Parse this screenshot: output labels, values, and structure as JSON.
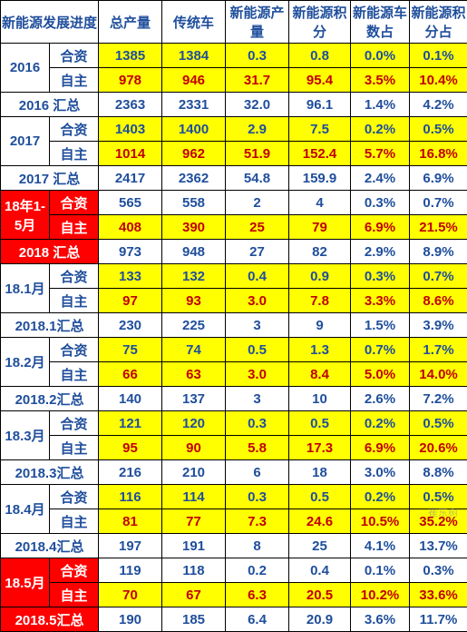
{
  "header": [
    "新能源发展进度",
    "总产量",
    "传统车",
    "新能源产量",
    "新能源积分",
    "新能源车数占",
    "新能源积分占"
  ],
  "widths": [
    54,
    54,
    70,
    70,
    70,
    68,
    65,
    64
  ],
  "rows": [
    {
      "group": "2016",
      "gstyle": "lbl",
      "sub": "合资",
      "substyle": "lbl",
      "cells": [
        "1385",
        "1384",
        "0.3",
        "0.8",
        "0.0%",
        "0.1%"
      ],
      "rowstyle": "yellow",
      "txt": "blue-txt"
    },
    {
      "group": "",
      "sub": "自主",
      "substyle": "lbl",
      "cells": [
        "978",
        "946",
        "31.7",
        "95.4",
        "3.5%",
        "10.4%"
      ],
      "rowstyle": "yellow",
      "txt": "red-txt"
    },
    {
      "span": "2016 汇总",
      "spanstyle": "lbl",
      "cells": [
        "2363",
        "2331",
        "32.0",
        "96.1",
        "1.4%",
        "4.2%"
      ],
      "rowstyle": "",
      "txt": "blue-txt"
    },
    {
      "group": "2017",
      "gstyle": "lbl",
      "sub": "合资",
      "substyle": "lbl",
      "cells": [
        "1403",
        "1400",
        "2.9",
        "7.5",
        "0.2%",
        "0.5%"
      ],
      "rowstyle": "yellow",
      "txt": "blue-txt"
    },
    {
      "group": "",
      "sub": "自主",
      "substyle": "lbl",
      "cells": [
        "1014",
        "962",
        "51.9",
        "152.4",
        "5.7%",
        "16.8%"
      ],
      "rowstyle": "yellow",
      "txt": "red-txt"
    },
    {
      "span": "2017 汇总",
      "spanstyle": "lbl",
      "cells": [
        "2417",
        "2362",
        "54.8",
        "159.9",
        "2.4%",
        "6.9%"
      ],
      "rowstyle": "",
      "txt": "blue-txt"
    },
    {
      "group": "18年1-5月",
      "gstyle": "red-bg",
      "sub": "合资",
      "substyle": "red-bg",
      "cells": [
        "565",
        "558",
        "2",
        "4",
        "0.3%",
        "0.7%"
      ],
      "rowstyle": "",
      "txt": "blue-txt"
    },
    {
      "group": "",
      "sub": "自主",
      "substyle": "red-bg",
      "cells": [
        "408",
        "390",
        "25",
        "79",
        "6.9%",
        "21.5%"
      ],
      "rowstyle": "yellow",
      "txt": "red-txt"
    },
    {
      "span": "2018 汇总",
      "spanstyle": "red-bg",
      "cells": [
        "973",
        "948",
        "27",
        "82",
        "2.9%",
        "8.9%"
      ],
      "rowstyle": "",
      "txt": "blue-txt"
    },
    {
      "group": "18.1月",
      "gstyle": "lbl",
      "sub": "合资",
      "substyle": "lbl",
      "cells": [
        "133",
        "132",
        "0.4",
        "0.9",
        "0.3%",
        "0.7%"
      ],
      "rowstyle": "yellow",
      "txt": "blue-txt"
    },
    {
      "group": "",
      "sub": "自主",
      "substyle": "lbl",
      "cells": [
        "97",
        "93",
        "3.0",
        "7.8",
        "3.3%",
        "8.6%"
      ],
      "rowstyle": "yellow",
      "txt": "red-txt"
    },
    {
      "span": "2018.1汇总",
      "spanstyle": "lbl",
      "cells": [
        "230",
        "225",
        "3",
        "9",
        "1.5%",
        "3.9%"
      ],
      "rowstyle": "",
      "txt": "blue-txt"
    },
    {
      "group": "18.2月",
      "gstyle": "lbl",
      "sub": "合资",
      "substyle": "lbl",
      "cells": [
        "75",
        "74",
        "0.5",
        "1.3",
        "0.7%",
        "1.7%"
      ],
      "rowstyle": "yellow",
      "txt": "blue-txt"
    },
    {
      "group": "",
      "sub": "自主",
      "substyle": "lbl",
      "cells": [
        "66",
        "63",
        "3.0",
        "8.4",
        "5.0%",
        "14.0%"
      ],
      "rowstyle": "yellow",
      "txt": "red-txt"
    },
    {
      "span": "2018.2汇总",
      "spanstyle": "lbl",
      "cells": [
        "140",
        "137",
        "3",
        "10",
        "2.6%",
        "7.2%"
      ],
      "rowstyle": "",
      "txt": "blue-txt"
    },
    {
      "group": "18.3月",
      "gstyle": "lbl",
      "sub": "合资",
      "substyle": "lbl",
      "cells": [
        "121",
        "120",
        "0.3",
        "0.5",
        "0.2%",
        "0.5%"
      ],
      "rowstyle": "yellow",
      "txt": "blue-txt"
    },
    {
      "group": "",
      "sub": "自主",
      "substyle": "lbl",
      "cells": [
        "95",
        "90",
        "5.8",
        "17.3",
        "6.9%",
        "20.6%"
      ],
      "rowstyle": "yellow",
      "txt": "red-txt"
    },
    {
      "span": "2018.3汇总",
      "spanstyle": "lbl",
      "cells": [
        "216",
        "210",
        "6",
        "18",
        "3.0%",
        "8.8%"
      ],
      "rowstyle": "",
      "txt": "blue-txt"
    },
    {
      "group": "18.4月",
      "gstyle": "lbl",
      "sub": "合资",
      "substyle": "lbl",
      "cells": [
        "116",
        "114",
        "0.3",
        "0.5",
        "0.2%",
        "0.5%"
      ],
      "rowstyle": "yellow",
      "txt": "blue-txt"
    },
    {
      "group": "",
      "sub": "自主",
      "substyle": "lbl",
      "cells": [
        "81",
        "77",
        "7.3",
        "24.6",
        "10.5%",
        "35.2%"
      ],
      "rowstyle": "yellow",
      "txt": "red-txt"
    },
    {
      "span": "2018.4汇总",
      "spanstyle": "lbl",
      "cells": [
        "197",
        "191",
        "8",
        "25",
        "4.1%",
        "13.7%"
      ],
      "rowstyle": "",
      "txt": "blue-txt"
    },
    {
      "group": "18.5月",
      "gstyle": "red-bg",
      "sub": "合资",
      "substyle": "red-bg",
      "cells": [
        "119",
        "118",
        "0.2",
        "0.4",
        "0.1%",
        "0.3%"
      ],
      "rowstyle": "",
      "txt": "blue-txt"
    },
    {
      "group": "",
      "sub": "自主",
      "substyle": "red-bg",
      "cells": [
        "70",
        "67",
        "6.3",
        "20.5",
        "10.2%",
        "33.6%"
      ],
      "rowstyle": "yellow",
      "txt": "red-txt"
    },
    {
      "span": "2018.5汇总",
      "spanstyle": "red-bg",
      "cells": [
        "190",
        "185",
        "6.4",
        "20.9",
        "3.6%",
        "11.7%"
      ],
      "rowstyle": "",
      "txt": "blue-txt"
    }
  ]
}
